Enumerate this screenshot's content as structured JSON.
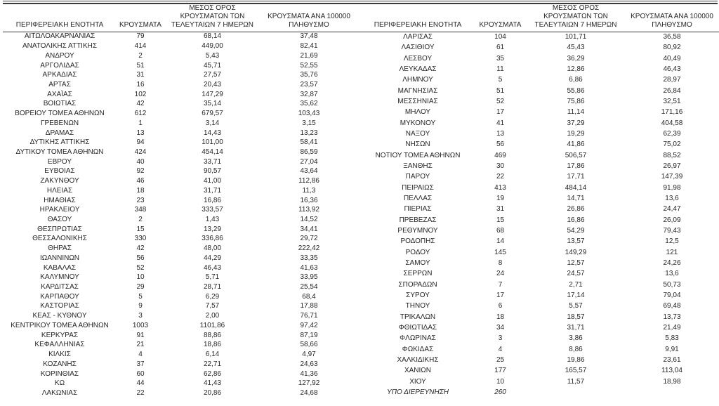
{
  "colors": {
    "background": "#ffffff",
    "text": "#262626",
    "rule": "#3a3a3a"
  },
  "columns": [
    {
      "label": "ΠΕΡΙΦΕΡΕΙΑΚΗ ΕΝΟΤΗΤΑ",
      "lines": [
        "ΠΕΡΙΦΕΡΕΙΑΚΗ ΕΝΟΤΗΤΑ"
      ]
    },
    {
      "label": "ΚΡΟΥΣΜΑΤΑ",
      "lines": [
        "ΚΡΟΥΣΜΑΤΑ"
      ]
    },
    {
      "label": "ΜΕΣΟΣ ΟΡΟΣ ΚΡΟΥΣΜΑΤΩΝ ΤΩΝ ΤΕΛΕΥΤΑΙΩΝ 7 ΗΜΕΡΩΝ",
      "lines": [
        "ΜΕΣΟΣ ΟΡΟΣ",
        "ΚΡΟΥΣΜΑΤΩΝ ΤΩΝ",
        "ΤΕΛΕΥΤΑΙΩΝ 7 ΗΜΕΡΩΝ"
      ]
    },
    {
      "label": "ΚΡΟΥΣΜΑΤΑ ΑΝΑ 100000 ΠΛΗΘΥΣΜΟ",
      "lines": [
        "ΚΡΟΥΣΜΑΤΑ ΑΝΑ 100000",
        "ΠΛΗΘΥΣΜΟ"
      ]
    }
  ],
  "left_table": {
    "rows": [
      {
        "cells": [
          "ΑΙΤΩΛΟΑΚΑΡΝΑΝΙΑΣ",
          "79",
          "68,14",
          "37,48"
        ]
      },
      {
        "cells": [
          "ΑΝΑΤΟΛΙΚΗΣ ΑΤΤΙΚΗΣ",
          "414",
          "449,00",
          "82,41"
        ]
      },
      {
        "cells": [
          "ΑΝΔΡΟΥ",
          "2",
          "5,43",
          "21,69"
        ]
      },
      {
        "cells": [
          "ΑΡΓΟΛΙΔΑΣ",
          "51",
          "45,71",
          "52,55"
        ]
      },
      {
        "cells": [
          "ΑΡΚΑΔΙΑΣ",
          "31",
          "27,57",
          "35,76"
        ]
      },
      {
        "cells": [
          "ΑΡΤΑΣ",
          "16",
          "20,43",
          "23,57"
        ]
      },
      {
        "cells": [
          "ΑΧΑΪΑΣ",
          "102",
          "147,29",
          "32,87"
        ]
      },
      {
        "cells": [
          "ΒΟΙΩΤΙΑΣ",
          "42",
          "35,14",
          "35,62"
        ]
      },
      {
        "cells": [
          "ΒΟΡΕΙΟΥ ΤΟΜΕΑ ΑΘΗΝΩΝ",
          "612",
          "679,57",
          "103,43"
        ]
      },
      {
        "cells": [
          "ΓΡΕΒΕΝΩΝ",
          "1",
          "3,14",
          "3,15"
        ]
      },
      {
        "cells": [
          "ΔΡΑΜΑΣ",
          "13",
          "14,43",
          "13,23"
        ]
      },
      {
        "cells": [
          "ΔΥΤΙΚΗΣ ΑΤΤΙΚΗΣ",
          "94",
          "101,00",
          "58,41"
        ]
      },
      {
        "cells": [
          "ΔΥΤΙΚΟΥ ΤΟΜΕΑ ΑΘΗΝΩΝ",
          "424",
          "454,14",
          "86,59"
        ]
      },
      {
        "cells": [
          "ΕΒΡΟΥ",
          "40",
          "33,71",
          "27,04"
        ]
      },
      {
        "cells": [
          "ΕΥΒΟΙΑΣ",
          "92",
          "90,57",
          "43,64"
        ]
      },
      {
        "cells": [
          "ΖΑΚΥΝΘΟΥ",
          "46",
          "41,00",
          "112,86"
        ]
      },
      {
        "cells": [
          "ΗΛΕΙΑΣ",
          "18",
          "31,71",
          "11,3"
        ]
      },
      {
        "cells": [
          "ΗΜΑΘΙΑΣ",
          "23",
          "16,86",
          "16,36"
        ]
      },
      {
        "cells": [
          "ΗΡΑΚΛΕΙΟΥ",
          "348",
          "333,57",
          "113,92"
        ]
      },
      {
        "cells": [
          "ΘΑΣΟΥ",
          "2",
          "1,43",
          "14,52"
        ]
      },
      {
        "cells": [
          "ΘΕΣΠΡΩΤΙΑΣ",
          "15",
          "13,29",
          "34,41"
        ]
      },
      {
        "cells": [
          "ΘΕΣΣΑΛΟΝΙΚΗΣ",
          "330",
          "336,86",
          "29,72"
        ]
      },
      {
        "cells": [
          "ΘΗΡΑΣ",
          "42",
          "48,00",
          "222,42"
        ]
      },
      {
        "cells": [
          "ΙΩΑΝΝΙΝΩΝ",
          "56",
          "44,29",
          "33,35"
        ]
      },
      {
        "cells": [
          "ΚΑΒΑΛΑΣ",
          "52",
          "46,43",
          "41,63"
        ]
      },
      {
        "cells": [
          "ΚΑΛΥΜΝΟΥ",
          "10",
          "5,71",
          "33,95"
        ]
      },
      {
        "cells": [
          "ΚΑΡΔΙΤΣΑΣ",
          "29",
          "28,71",
          "25,54"
        ]
      },
      {
        "cells": [
          "ΚΑΡΠΑΘΟΥ",
          "5",
          "6,29",
          "68,4"
        ]
      },
      {
        "cells": [
          "ΚΑΣΤΟΡΙΑΣ",
          "9",
          "7,57",
          "17,88"
        ]
      },
      {
        "cells": [
          "ΚΕΑΣ - ΚΥΘΝΟΥ",
          "3",
          "2,00",
          "76,71"
        ]
      },
      {
        "cells": [
          "ΚΕΝΤΡΙΚΟΥ ΤΟΜΕΑ ΑΘΗΝΩΝ",
          "1003",
          "1101,86",
          "97,42"
        ]
      },
      {
        "cells": [
          "ΚΕΡΚΥΡΑΣ",
          "91",
          "88,86",
          "87,19"
        ]
      },
      {
        "cells": [
          "ΚΕΦΑΛΛΗΝΙΑΣ",
          "21",
          "18,86",
          "58,66"
        ]
      },
      {
        "cells": [
          "ΚΙΛΚΙΣ",
          "4",
          "6,14",
          "4,97"
        ]
      },
      {
        "cells": [
          "ΚΟΖΑΝΗΣ",
          "37",
          "22,71",
          "24,63"
        ]
      },
      {
        "cells": [
          "ΚΟΡΙΝΘΙΑΣ",
          "60",
          "62,86",
          "41,36"
        ]
      },
      {
        "cells": [
          "ΚΩ",
          "44",
          "41,43",
          "127,92"
        ]
      },
      {
        "cells": [
          "ΛΑΚΩΝΙΑΣ",
          "22",
          "20,86",
          "24,68"
        ]
      }
    ]
  },
  "right_table": {
    "rows": [
      {
        "cells": [
          "ΛΑΡΙΣΑΣ",
          "104",
          "101,71",
          "36,58"
        ]
      },
      {
        "cells": [
          "ΛΑΣΙΘΙΟΥ",
          "61",
          "45,43",
          "80,92"
        ]
      },
      {
        "cells": [
          "ΛΕΣΒΟΥ",
          "35",
          "36,29",
          "40,49"
        ]
      },
      {
        "cells": [
          "ΛΕΥΚΑΔΑΣ",
          "11",
          "12,86",
          "46,43"
        ]
      },
      {
        "cells": [
          "ΛΗΜΝΟΥ",
          "5",
          "6,86",
          "28,97"
        ]
      },
      {
        "cells": [
          "ΜΑΓΝΗΣΙΑΣ",
          "51",
          "55,86",
          "26,84"
        ]
      },
      {
        "cells": [
          "ΜΕΣΣΗΝΙΑΣ",
          "52",
          "75,86",
          "32,51"
        ]
      },
      {
        "cells": [
          "ΜΗΛΟΥ",
          "17",
          "11,14",
          "171,16"
        ]
      },
      {
        "cells": [
          "ΜΥΚΟΝΟΥ",
          "41",
          "37,29",
          "404,58"
        ]
      },
      {
        "cells": [
          "ΝΑΞΟΥ",
          "13",
          "19,29",
          "62,39"
        ]
      },
      {
        "cells": [
          "ΝΗΣΩΝ",
          "56",
          "41,86",
          "75,02"
        ]
      },
      {
        "cells": [
          "ΝΟΤΙΟΥ ΤΟΜΕΑ ΑΘΗΝΩΝ",
          "469",
          "506,57",
          "88,52"
        ]
      },
      {
        "cells": [
          "ΞΑΝΘΗΣ",
          "30",
          "17,86",
          "26,97"
        ]
      },
      {
        "cells": [
          "ΠΑΡΟΥ",
          "22",
          "17,71",
          "147,39"
        ]
      },
      {
        "cells": [
          "ΠΕΙΡΑΙΩΣ",
          "413",
          "484,14",
          "91,98"
        ]
      },
      {
        "cells": [
          "ΠΕΛΛΑΣ",
          "19",
          "14,71",
          "13,6"
        ]
      },
      {
        "cells": [
          "ΠΙΕΡΙΑΣ",
          "31",
          "26,86",
          "24,47"
        ]
      },
      {
        "cells": [
          "ΠΡΕΒΕΖΑΣ",
          "15",
          "16,86",
          "26,09"
        ]
      },
      {
        "cells": [
          "ΡΕΘΥΜΝΟΥ",
          "68",
          "54,29",
          "79,43"
        ]
      },
      {
        "cells": [
          "ΡΟΔΟΠΗΣ",
          "14",
          "13,57",
          "12,5"
        ]
      },
      {
        "cells": [
          "ΡΟΔΟΥ",
          "145",
          "149,29",
          "121"
        ]
      },
      {
        "cells": [
          "ΣΑΜΟΥ",
          "8",
          "12,57",
          "24,26"
        ]
      },
      {
        "cells": [
          "ΣΕΡΡΩΝ",
          "24",
          "24,57",
          "13,6"
        ]
      },
      {
        "cells": [
          "ΣΠΟΡΑΔΩΝ",
          "7",
          "2,71",
          "50,73"
        ]
      },
      {
        "cells": [
          "ΣΥΡΟΥ",
          "17",
          "17,14",
          "79,04"
        ]
      },
      {
        "cells": [
          "ΤΗΝΟΥ",
          "6",
          "5,57",
          "69,48"
        ]
      },
      {
        "cells": [
          "ΤΡΙΚΑΛΩΝ",
          "18",
          "18,57",
          "13,73"
        ]
      },
      {
        "cells": [
          "ΦΘΙΩΤΙΔΑΣ",
          "34",
          "31,71",
          "21,49"
        ]
      },
      {
        "cells": [
          "ΦΛΩΡΙΝΑΣ",
          "3",
          "3,86",
          "5,83"
        ]
      },
      {
        "cells": [
          "ΦΩΚΙΔΑΣ",
          "4",
          "8,86",
          "9,91"
        ]
      },
      {
        "cells": [
          "ΧΑΛΚΙΔΙΚΗΣ",
          "25",
          "19,86",
          "23,61"
        ]
      },
      {
        "cells": [
          "ΧΑΝΙΩΝ",
          "177",
          "165,57",
          "113,04"
        ]
      },
      {
        "cells": [
          "ΧΙΟΥ",
          "10",
          "11,57",
          "18,98"
        ]
      },
      {
        "cells": [
          "ΥΠΟ ΔΙΕΡΕΥΝΗΣΗ",
          "260",
          "",
          ""
        ],
        "italic": true
      }
    ]
  }
}
